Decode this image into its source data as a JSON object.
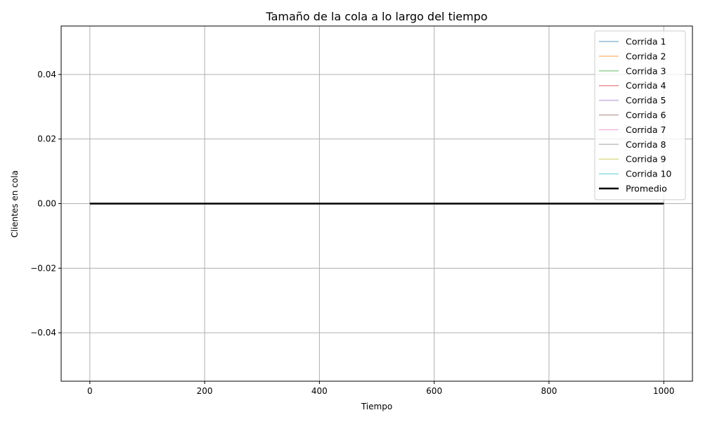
{
  "chart_data": {
    "type": "line",
    "title": "Tamaño de la cola a lo largo del tiempo",
    "xlabel": "Tiempo",
    "ylabel": "Clientes en cola",
    "xlim": [
      -50,
      1050
    ],
    "ylim": [
      -0.055,
      0.055
    ],
    "xticks": [
      0,
      200,
      400,
      600,
      800,
      1000
    ],
    "xtick_labels": [
      "0",
      "200",
      "400",
      "600",
      "800",
      "1000"
    ],
    "yticks": [
      -0.04,
      -0.02,
      0.0,
      0.02,
      0.04
    ],
    "ytick_labels": [
      "−0.04",
      "−0.02",
      "0.00",
      "0.02",
      "0.04"
    ],
    "grid": true,
    "legend_position": "top-right",
    "x": [
      0,
      1000
    ],
    "series": [
      {
        "name": "Corrida 1",
        "color": "#1f77b4",
        "values": [
          0,
          0
        ]
      },
      {
        "name": "Corrida 2",
        "color": "#ff7f0e",
        "values": [
          0,
          0
        ]
      },
      {
        "name": "Corrida 3",
        "color": "#2ca02c",
        "values": [
          0,
          0
        ]
      },
      {
        "name": "Corrida 4",
        "color": "#d62728",
        "values": [
          0,
          0
        ]
      },
      {
        "name": "Corrida 5",
        "color": "#9467bd",
        "values": [
          0,
          0
        ]
      },
      {
        "name": "Corrida 6",
        "color": "#8c564b",
        "values": [
          0,
          0
        ]
      },
      {
        "name": "Corrida 7",
        "color": "#e377c2",
        "values": [
          0,
          0
        ]
      },
      {
        "name": "Corrida 8",
        "color": "#7f7f7f",
        "values": [
          0,
          0
        ]
      },
      {
        "name": "Corrida 9",
        "color": "#bcbd22",
        "values": [
          0,
          0
        ]
      },
      {
        "name": "Corrida 10",
        "color": "#17becf",
        "values": [
          0,
          0
        ]
      },
      {
        "name": "Promedio",
        "color": "#000000",
        "values": [
          0,
          0
        ],
        "emphasis": true
      }
    ]
  }
}
